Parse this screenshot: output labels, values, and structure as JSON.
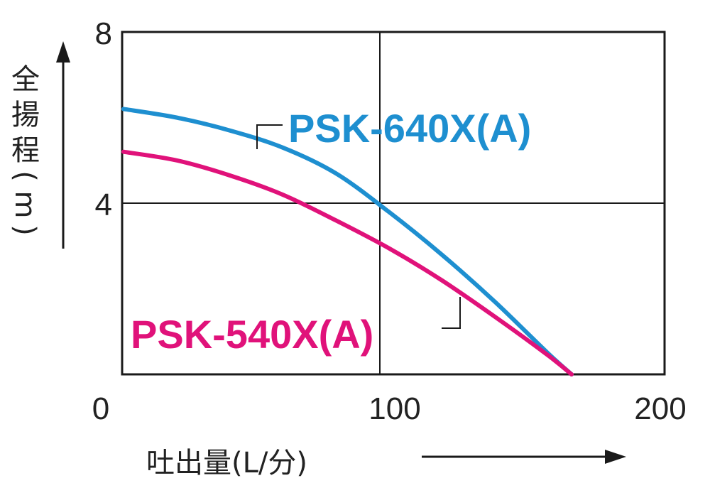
{
  "chart_data": {
    "type": "line",
    "title": "",
    "xlabel": "吐出量(L/分)",
    "ylabel": "全揚程(m)",
    "ylabel_chars": [
      "全",
      "揚",
      "程",
      "(",
      "m",
      ")"
    ],
    "xlim": [
      0,
      200
    ],
    "ylim": [
      0,
      8
    ],
    "x_ticks": [
      "0",
      "100",
      "200"
    ],
    "y_ticks": [
      "8",
      "4"
    ],
    "grid": true,
    "legend": "callout labels next to each curve",
    "series": [
      {
        "name": "PSK-640X(A)",
        "color": "#1e8fd0",
        "x": [
          0,
          20,
          40,
          60,
          80,
          100,
          120,
          140,
          160,
          169
        ],
        "y": [
          6.2,
          6.0,
          5.7,
          5.3,
          4.7,
          3.8,
          2.8,
          1.7,
          0.5,
          0.0
        ]
      },
      {
        "name": "PSK-540X(A)",
        "color": "#e0127a",
        "x": [
          0,
          20,
          40,
          60,
          80,
          100,
          120,
          140,
          160,
          169
        ],
        "y": [
          5.2,
          5.0,
          4.65,
          4.2,
          3.6,
          2.95,
          2.2,
          1.35,
          0.45,
          0.0
        ]
      }
    ]
  }
}
